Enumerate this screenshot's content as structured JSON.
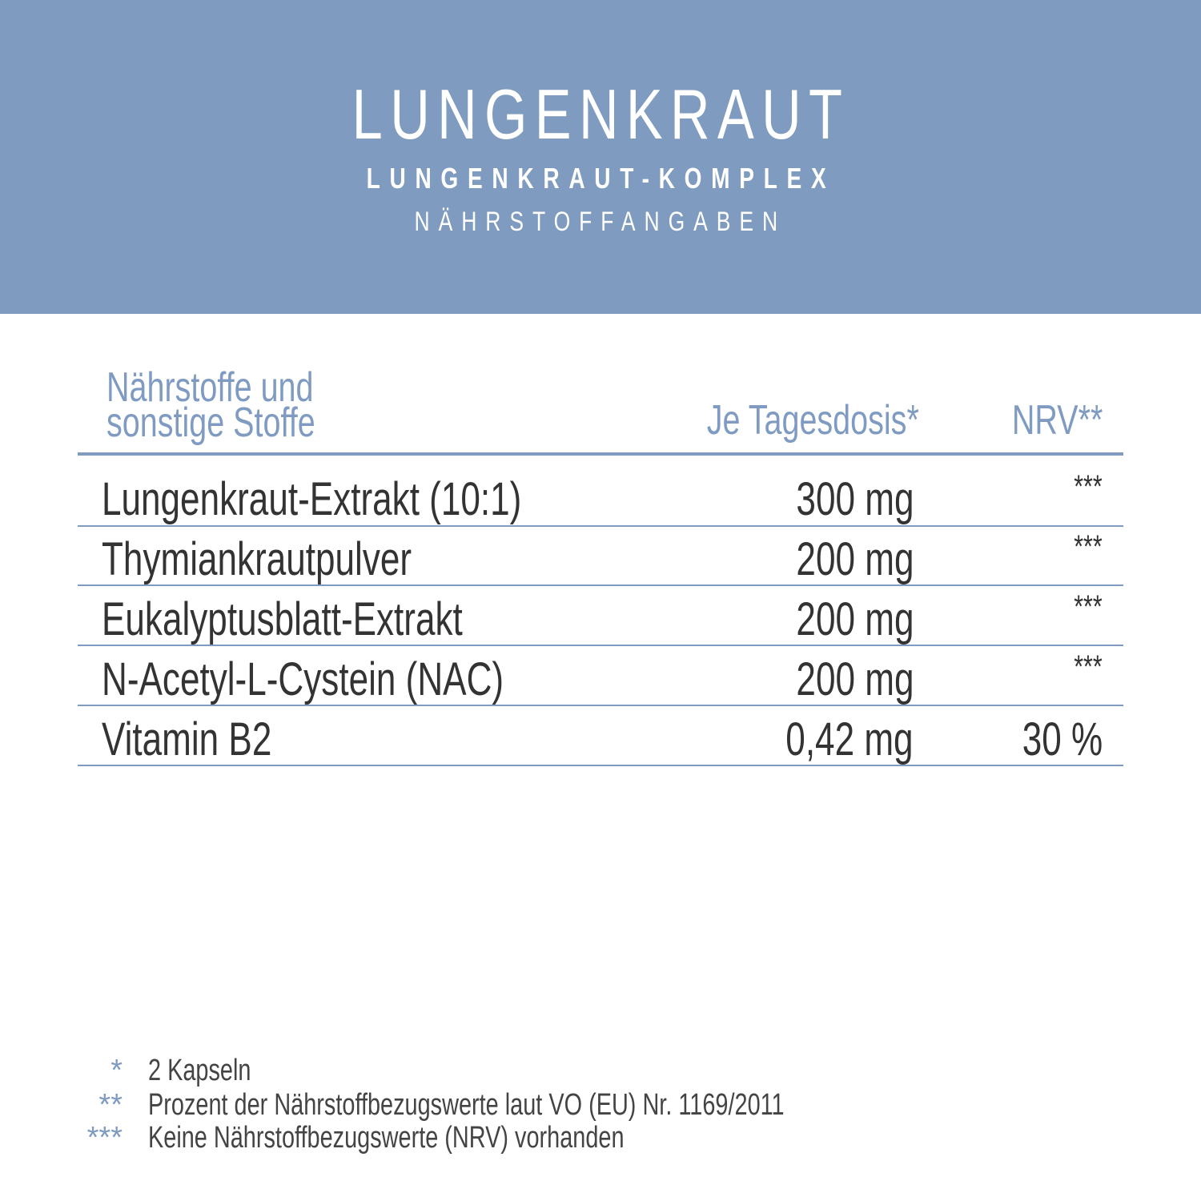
{
  "header": {
    "title": "LUNGENKRAUT",
    "subtitle": "LUNGENKRAUT-KOMPLEX",
    "section": "NÄHRSTOFFANGABEN",
    "background_color": "#7f9bbf"
  },
  "table": {
    "columns": {
      "name_line1": "Nährstoffe und",
      "name_line2": "sonstige Stoffe",
      "dose": "Je Tagesdosis*",
      "nrv": "NRV**"
    },
    "rows": [
      {
        "name": "Lungenkraut-Extrakt (10:1)",
        "dose": "300 mg",
        "nrv": "***"
      },
      {
        "name": "Thymiankrautpulver",
        "dose": "200 mg",
        "nrv": "***"
      },
      {
        "name": "Eukalyptusblatt-Extrakt",
        "dose": "200 mg",
        "nrv": "***"
      },
      {
        "name": "N-Acetyl-L-Cystein (NAC)",
        "dose": "200 mg",
        "nrv": "***"
      },
      {
        "name": "Vitamin B2",
        "dose": "0,42 mg",
        "nrv": "30 %"
      }
    ],
    "accent_color": "#7f9bc2"
  },
  "footnotes": [
    {
      "mark": "*",
      "text": "2 Kapseln"
    },
    {
      "mark": "**",
      "text": "Prozent der Nährstoffbezugswerte laut VO (EU) Nr. 1169/2011"
    },
    {
      "mark": "***",
      "text": "Keine Nährstoffbezugswerte (NRV) vorhanden"
    }
  ]
}
